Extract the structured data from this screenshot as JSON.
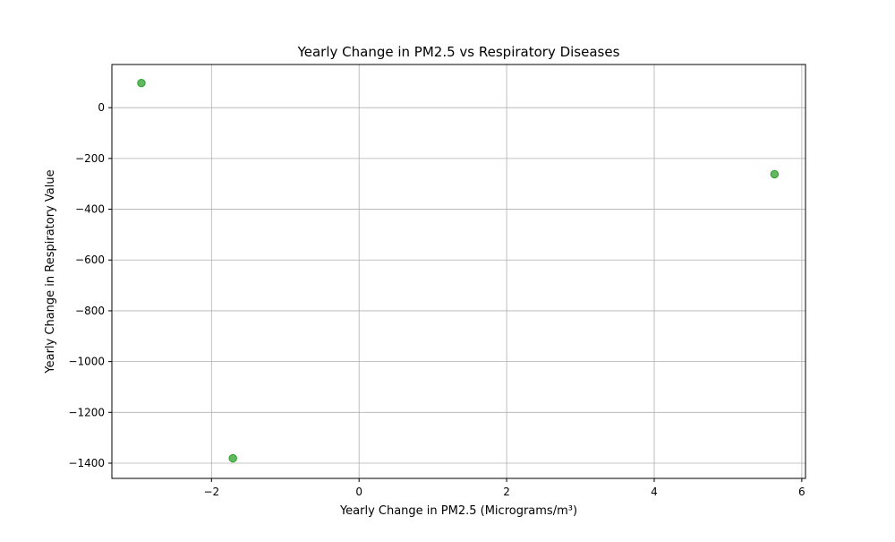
{
  "chart_data": {
    "type": "scatter",
    "title": "Yearly Change in PM2.5 vs Respiratory Diseases",
    "xlabel": "Yearly Change in PM2.5 (Micrograms/m³)",
    "ylabel": "Yearly Change in Respiratory Value",
    "xlim": [
      -3.35,
      6.05
    ],
    "ylim": [
      -1460,
      170
    ],
    "xticks": [
      -2,
      0,
      2,
      4,
      6
    ],
    "xtick_labels": [
      "−2",
      "0",
      "2",
      "4",
      "6"
    ],
    "yticks": [
      0,
      -200,
      -400,
      -600,
      -800,
      -1000,
      -1200,
      -1400
    ],
    "ytick_labels": [
      "0",
      "−200",
      "−400",
      "−600",
      "−800",
      "−1000",
      "−1200",
      "−1400"
    ],
    "grid": true,
    "legend": "none",
    "marker_color": "#2ca02c",
    "points": [
      {
        "x": -2.95,
        "y": 97
      },
      {
        "x": -1.71,
        "y": -1381
      },
      {
        "x": 5.63,
        "y": -262
      }
    ]
  }
}
